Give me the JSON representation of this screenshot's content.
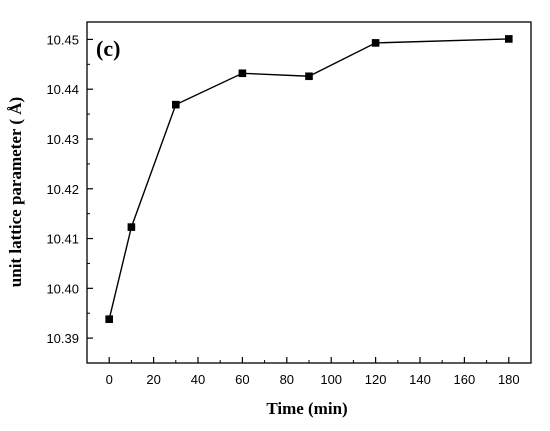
{
  "chart_data": {
    "type": "line",
    "panel_label": "(c)",
    "xlabel": "Time (min)",
    "ylabel": "unit lattice parameter ( Å)",
    "xlim": [
      -10,
      190
    ],
    "ylim": [
      10.385,
      10.4535
    ],
    "x_ticks": [
      0,
      20,
      40,
      60,
      80,
      100,
      120,
      140,
      160,
      180
    ],
    "x_tick_labels": [
      "0",
      "20",
      "40",
      "60",
      "80",
      "100",
      "120",
      "140",
      "160",
      "180"
    ],
    "y_ticks": [
      10.39,
      10.4,
      10.41,
      10.42,
      10.43,
      10.44,
      10.45
    ],
    "y_tick_labels": [
      "10.39",
      "10.40",
      "10.41",
      "10.42",
      "10.43",
      "10.44",
      "10.45"
    ],
    "grid": false,
    "legend": false,
    "series": [
      {
        "marker": "square",
        "color": "#000000",
        "x": [
          0,
          10,
          30,
          60,
          90,
          120,
          180
        ],
        "y": [
          10.3938,
          10.4123,
          10.4369,
          10.4432,
          10.4426,
          10.4493,
          10.4501
        ]
      }
    ]
  }
}
